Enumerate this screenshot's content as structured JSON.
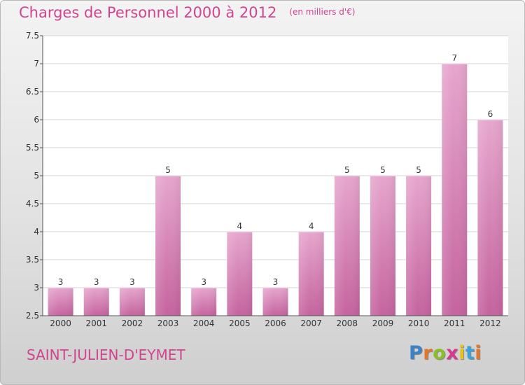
{
  "title": "Charges de Personnel 2000 à 2012",
  "subtitle": "(en milliers d'€)",
  "commune": "SAINT-JULIEN-D'EYMET",
  "logo": {
    "letters": [
      "P",
      "r",
      "o",
      "x",
      "i",
      "t",
      "i"
    ],
    "colors": [
      "#3b82c8",
      "#e2762a",
      "#8abf2a",
      "#d83a8f",
      "#e8c21c",
      "#3aa2d8",
      "#e2762a"
    ]
  },
  "colors": {
    "bar": "#c5639f",
    "bar_light": "#e6a6cd",
    "title": "#d0458e"
  },
  "chart_data": {
    "type": "bar",
    "title": "Charges de Personnel 2000 à 2012",
    "subtitle": "(en milliers d'€)",
    "categories": [
      "2000",
      "2001",
      "2002",
      "2003",
      "2004",
      "2005",
      "2006",
      "2007",
      "2008",
      "2009",
      "2010",
      "2011",
      "2012"
    ],
    "values": [
      3,
      3,
      3,
      5,
      3,
      4,
      3,
      4,
      5,
      5,
      5,
      7,
      6
    ],
    "ylim": [
      2.5,
      7.5
    ],
    "yticks": [
      "2.5",
      "3",
      "3.5",
      "4",
      "4.5",
      "5",
      "5.5",
      "6",
      "6.5",
      "7",
      "7.5"
    ],
    "grid": "horizontal",
    "legend": "none"
  }
}
